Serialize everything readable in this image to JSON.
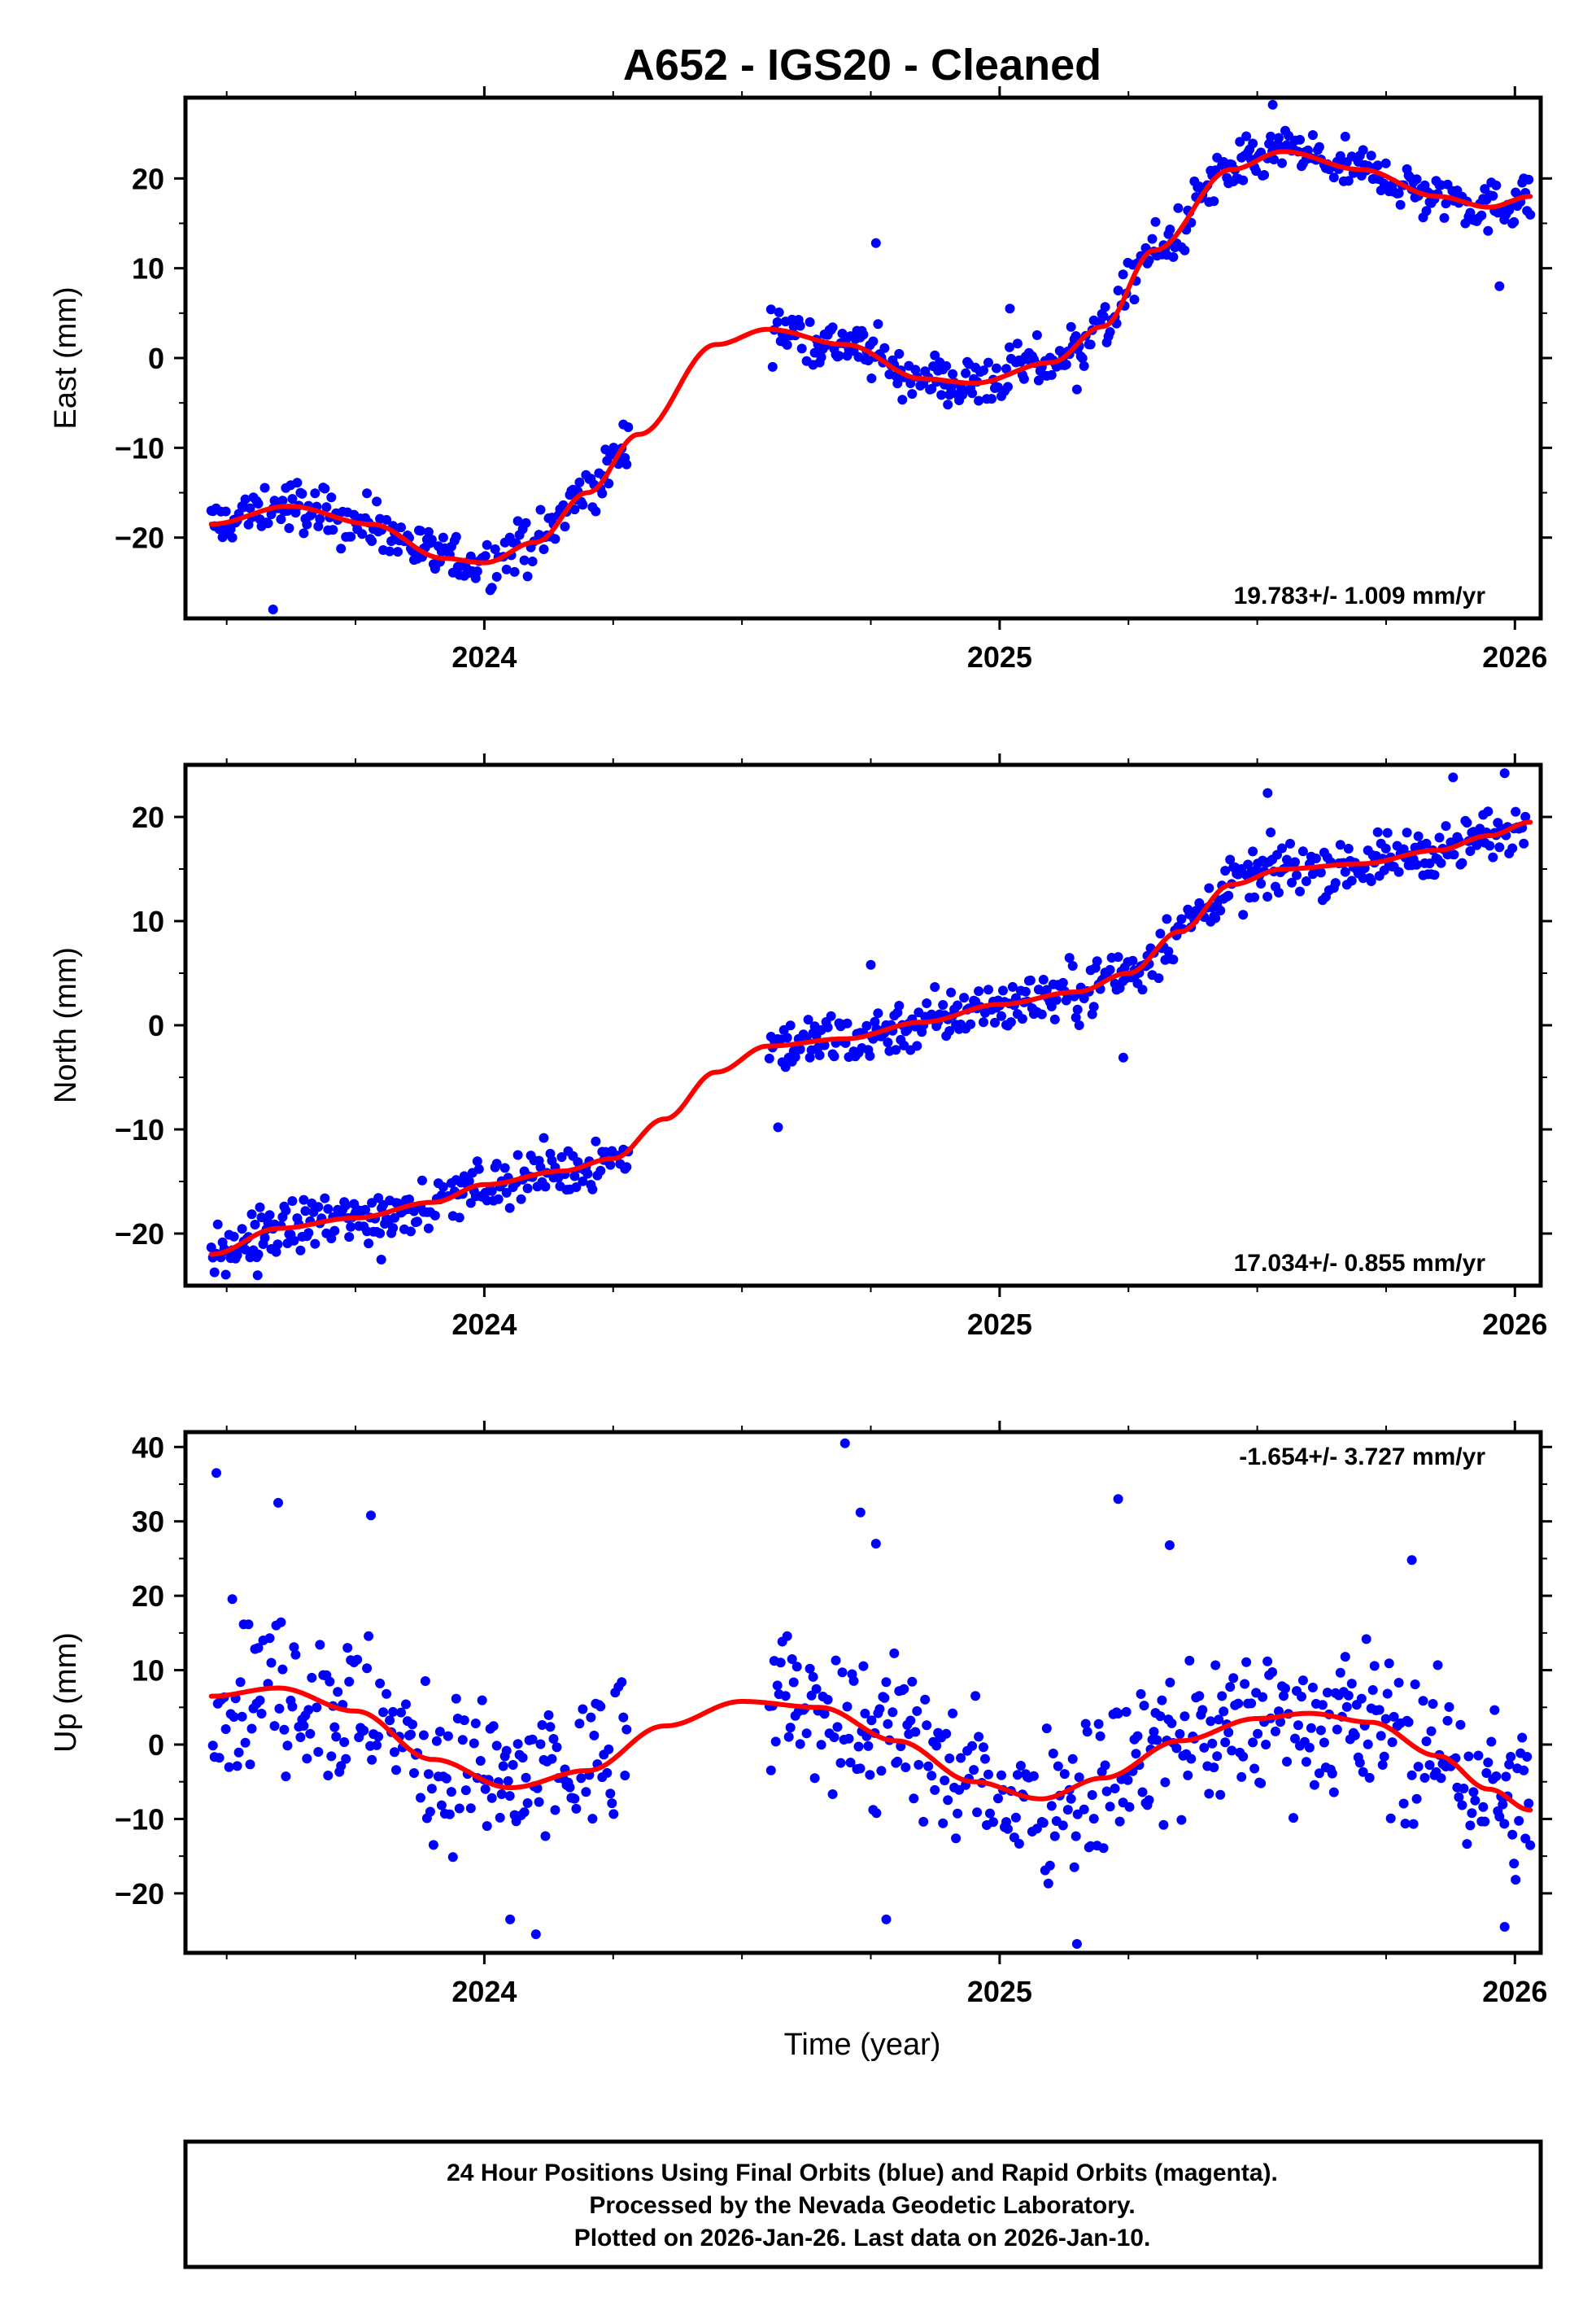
{
  "colors": {
    "final_orbits": "#0000ff",
    "rapid_orbits": "#ff00ff",
    "model": "#ff0000",
    "frame": "#000000"
  },
  "chart_data": {
    "title": "A652  - IGS20 - Cleaned",
    "xlabel": "Time (year)",
    "xlim": [
      2023.42,
      2026.05
    ],
    "x_ticks": [
      2024,
      2025,
      2026
    ],
    "x_tick_labels": [
      "2024",
      "2025",
      "2026"
    ],
    "data_gap": [
      2024.28,
      2024.55
    ],
    "panels": [
      {
        "type": "scatter",
        "component": "east",
        "ylabel": "East (mm)",
        "ylim": [
          -29,
          29
        ],
        "y_ticks": [
          -20,
          -10,
          0,
          10,
          20
        ],
        "y_tick_labels": [
          "−20",
          "−10",
          "0",
          "10",
          "20"
        ],
        "rate_text": "19.783+/- 1.009 mm/yr",
        "rate_position": "bottom-right",
        "noise": 2.0,
        "extra_points": [
          [
            2023.59,
            -28
          ],
          [
            2024.76,
            12.8
          ],
          [
            2025.02,
            5.5
          ],
          [
            2025.15,
            -3.5
          ],
          [
            2025.53,
            28.2
          ],
          [
            2025.97,
            8.0
          ]
        ],
        "trend": [
          [
            2023.47,
            -18.5
          ],
          [
            2023.62,
            -16.5
          ],
          [
            2023.78,
            -18.5
          ],
          [
            2023.92,
            -22.3
          ],
          [
            2024.0,
            -22.8
          ],
          [
            2024.1,
            -20.5
          ],
          [
            2024.2,
            -15.0
          ],
          [
            2024.3,
            -8.5
          ],
          [
            2024.45,
            1.5
          ],
          [
            2024.55,
            3.2
          ],
          [
            2024.7,
            1.5
          ],
          [
            2024.85,
            -2.3
          ],
          [
            2024.95,
            -2.8
          ],
          [
            2025.1,
            -0.5
          ],
          [
            2025.2,
            3.5
          ],
          [
            2025.3,
            12.0
          ],
          [
            2025.45,
            21.0
          ],
          [
            2025.55,
            23.0
          ],
          [
            2025.7,
            21.0
          ],
          [
            2025.85,
            18.0
          ],
          [
            2025.95,
            16.8
          ],
          [
            2026.03,
            18.0
          ]
        ]
      },
      {
        "type": "scatter",
        "component": "north",
        "ylabel": "North (mm)",
        "ylim": [
          -25,
          25
        ],
        "y_ticks": [
          -20,
          -10,
          0,
          10,
          20
        ],
        "y_tick_labels": [
          "−20",
          "−10",
          "0",
          "10",
          "20"
        ],
        "rate_text": "17.034+/- 0.855 mm/yr",
        "rate_position": "bottom-right",
        "noise": 1.8,
        "extra_points": [
          [
            2023.56,
            -24
          ],
          [
            2023.8,
            -22.5
          ],
          [
            2024.57,
            -9.8
          ],
          [
            2024.75,
            5.8
          ],
          [
            2025.24,
            -3.1
          ],
          [
            2025.52,
            22.3
          ],
          [
            2025.88,
            23.8
          ],
          [
            2025.98,
            24.2
          ]
        ],
        "trend": [
          [
            2023.47,
            -22.0
          ],
          [
            2023.6,
            -19.5
          ],
          [
            2023.75,
            -18.5
          ],
          [
            2023.9,
            -17.0
          ],
          [
            2024.0,
            -15.3
          ],
          [
            2024.15,
            -14.0
          ],
          [
            2024.25,
            -12.8
          ],
          [
            2024.35,
            -9.0
          ],
          [
            2024.45,
            -4.5
          ],
          [
            2024.55,
            -2.0
          ],
          [
            2024.7,
            -1.3
          ],
          [
            2024.85,
            0.3
          ],
          [
            2025.0,
            2.0
          ],
          [
            2025.15,
            3.2
          ],
          [
            2025.25,
            5.0
          ],
          [
            2025.35,
            9.0
          ],
          [
            2025.45,
            13.5
          ],
          [
            2025.55,
            15.0
          ],
          [
            2025.7,
            15.5
          ],
          [
            2025.85,
            16.8
          ],
          [
            2025.95,
            18.2
          ],
          [
            2026.03,
            19.5
          ]
        ]
      },
      {
        "type": "scatter",
        "component": "up",
        "ylabel": "Up (mm)",
        "ylim": [
          -28,
          42
        ],
        "y_ticks": [
          -20,
          -10,
          0,
          10,
          20,
          30,
          40
        ],
        "y_tick_labels": [
          "−20",
          "−10",
          "0",
          "10",
          "20",
          "30",
          "40"
        ],
        "rate_text": "-1.654+/- 3.727 mm/yr",
        "rate_position": "top-right",
        "noise": 7.5,
        "extra_points": [
          [
            2023.48,
            36.5
          ],
          [
            2023.6,
            32.5
          ],
          [
            2023.78,
            30.8
          ],
          [
            2024.7,
            40.5
          ],
          [
            2024.73,
            31.2
          ],
          [
            2024.76,
            27.0
          ],
          [
            2025.23,
            33.0
          ],
          [
            2025.33,
            26.8
          ],
          [
            2025.8,
            24.8
          ],
          [
            2024.05,
            -23.5
          ],
          [
            2024.1,
            -25.5
          ],
          [
            2024.78,
            -23.5
          ],
          [
            2025.15,
            -26.8
          ],
          [
            2025.98,
            -24.5
          ]
        ],
        "trend": [
          [
            2023.47,
            6.5
          ],
          [
            2023.6,
            7.6
          ],
          [
            2023.75,
            4.5
          ],
          [
            2023.9,
            -2.0
          ],
          [
            2024.05,
            -5.8
          ],
          [
            2024.2,
            -3.5
          ],
          [
            2024.35,
            2.5
          ],
          [
            2024.5,
            5.8
          ],
          [
            2024.65,
            5.0
          ],
          [
            2024.8,
            0.5
          ],
          [
            2024.95,
            -5.0
          ],
          [
            2025.08,
            -7.3
          ],
          [
            2025.2,
            -4.5
          ],
          [
            2025.35,
            0.5
          ],
          [
            2025.5,
            3.5
          ],
          [
            2025.6,
            4.2
          ],
          [
            2025.72,
            3.0
          ],
          [
            2025.85,
            -1.5
          ],
          [
            2025.95,
            -6.0
          ],
          [
            2026.03,
            -8.8
          ]
        ]
      }
    ],
    "footer_lines": [
      "24 Hour Positions Using Final Orbits (blue) and Rapid Orbits (magenta).",
      "Processed by the Nevada Geodetic Laboratory.",
      "Plotted on 2026-Jan-26. Last data on 2026-Jan-10."
    ]
  }
}
